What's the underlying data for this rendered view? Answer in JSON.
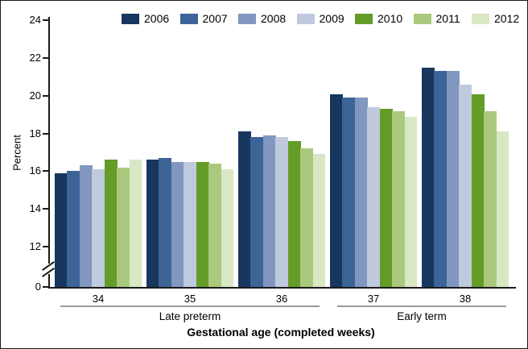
{
  "chart_data": {
    "type": "bar",
    "title": "",
    "ylabel": "Percent",
    "xlabel": "Gestational age (completed weeks)",
    "categories": [
      "34",
      "35",
      "36",
      "37",
      "38"
    ],
    "category_groups": [
      {
        "label": "Late preterm",
        "categories": [
          "34",
          "35",
          "36"
        ]
      },
      {
        "label": "Early term",
        "categories": [
          "37",
          "38"
        ]
      }
    ],
    "series": [
      {
        "name": "2006",
        "color": "#17375e",
        "values": [
          15.9,
          16.6,
          18.1,
          20.1,
          21.5
        ]
      },
      {
        "name": "2007",
        "color": "#3c6497",
        "values": [
          16.0,
          16.7,
          17.8,
          19.9,
          21.3
        ]
      },
      {
        "name": "2008",
        "color": "#8197bf",
        "values": [
          16.3,
          16.5,
          17.9,
          19.9,
          21.3
        ]
      },
      {
        "name": "2009",
        "color": "#c0cade",
        "values": [
          16.1,
          16.5,
          17.8,
          19.4,
          20.6
        ]
      },
      {
        "name": "2010",
        "color": "#649c28",
        "values": [
          16.6,
          16.5,
          17.6,
          19.3,
          20.1
        ]
      },
      {
        "name": "2011",
        "color": "#abc97e",
        "values": [
          16.2,
          16.4,
          17.2,
          19.2,
          19.2
        ]
      },
      {
        "name": "2012",
        "color": "#d9e8c4",
        "values": [
          16.6,
          16.1,
          16.9,
          18.9,
          18.1
        ]
      }
    ],
    "y_ticks": [
      24,
      22,
      20,
      18,
      16,
      14,
      12,
      0
    ],
    "ylim": [
      0,
      24
    ],
    "axis_break_between": [
      0,
      12
    ],
    "grid": false,
    "legend_position": "top"
  }
}
